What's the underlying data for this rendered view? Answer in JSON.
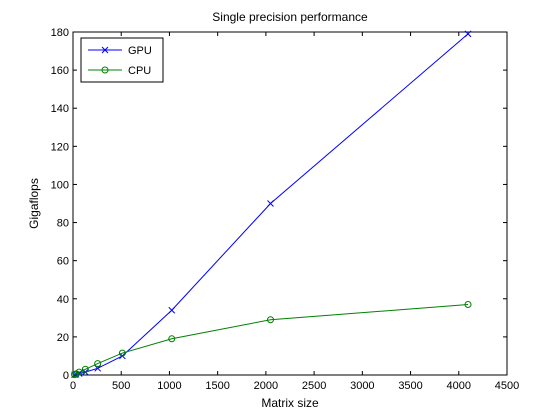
{
  "chart_data": {
    "type": "line",
    "title": "Single precision performance",
    "xlabel": "Matrix size",
    "ylabel": "Gigaflops",
    "xlim": [
      0,
      4500
    ],
    "ylim": [
      0,
      180
    ],
    "x_ticks": [
      0,
      500,
      1000,
      1500,
      2000,
      2500,
      3000,
      3500,
      4000,
      4500
    ],
    "y_ticks": [
      0,
      20,
      40,
      60,
      80,
      100,
      120,
      140,
      160,
      180
    ],
    "grid": false,
    "legend_position": "top-left",
    "series": [
      {
        "name": "GPU",
        "color": "#0000ff",
        "marker": "x",
        "x": [
          16,
          32,
          64,
          128,
          256,
          512,
          1024,
          2048,
          4096
        ],
        "y": [
          0.1,
          0.3,
          0.8,
          1.5,
          3.5,
          10,
          34,
          90,
          179
        ]
      },
      {
        "name": "CPU",
        "color": "#008000",
        "marker": "circle",
        "x": [
          16,
          32,
          64,
          128,
          256,
          512,
          1024,
          2048,
          4096
        ],
        "y": [
          0.2,
          0.6,
          1.5,
          3,
          6,
          11.5,
          19,
          29,
          37
        ]
      }
    ]
  }
}
